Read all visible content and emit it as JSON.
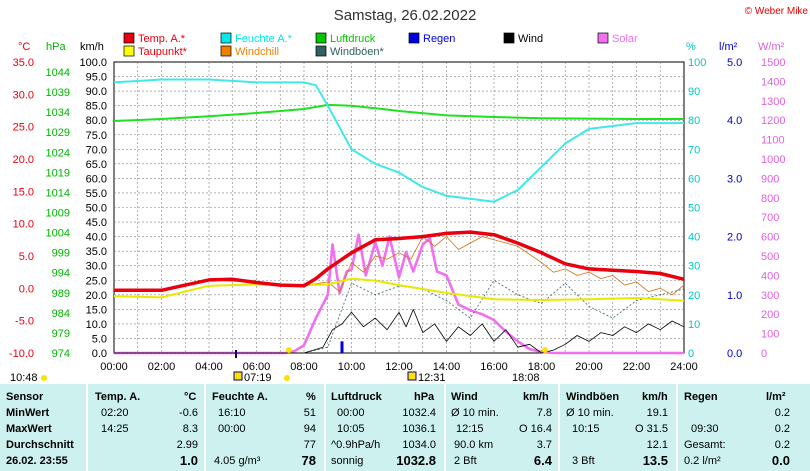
{
  "chart_data": {
    "type": "line",
    "title": "Samstag, 26.02.2022",
    "copyright": "© Weber Mike",
    "x_ticks": [
      "00:00",
      "02:00",
      "04:00",
      "06:00",
      "08:00",
      "10:00",
      "12:00",
      "14:00",
      "16:00",
      "18:00",
      "20:00",
      "22:00",
      "24:00"
    ],
    "axes": {
      "temp": {
        "unit": "°C",
        "min": -10,
        "max": 35,
        "ticks": [
          "35.0",
          "30.0",
          "25.0",
          "20.0",
          "15.0",
          "10.0",
          "5.0",
          "0.0",
          "-5.0",
          "-10.0"
        ],
        "color": "#e8000f"
      },
      "pressure": {
        "unit": "hPa",
        "min": 974,
        "max": 1046.5,
        "ticks": [
          "1044",
          "1039",
          "1034",
          "1029",
          "1024",
          "1019",
          "1014",
          "1009",
          "1004",
          "999",
          "994",
          "989",
          "984",
          "979",
          "974"
        ],
        "color": "#00b400"
      },
      "wind": {
        "unit": "km/h",
        "min": 0,
        "max": 100,
        "ticks": [
          "100.0",
          "95.0",
          "90.0",
          "85.0",
          "80.0",
          "75.0",
          "70.0",
          "65.0",
          "60.0",
          "55.0",
          "50.0",
          "45.0",
          "40.0",
          "35.0",
          "30.0",
          "25.0",
          "20.0",
          "15.0",
          "10.0",
          "5.0",
          "0.0"
        ],
        "color": "#000000"
      },
      "humidity": {
        "unit": "%",
        "min": 0,
        "max": 100,
        "ticks": [
          "100",
          "90",
          "80",
          "70",
          "60",
          "50",
          "40",
          "30",
          "20",
          "10",
          "0"
        ],
        "color": "#00c8c8"
      },
      "rain": {
        "unit": "l/m²",
        "min": 0,
        "max": 5,
        "ticks": [
          "5.0",
          "4.0",
          "3.0",
          "2.0",
          "1.0",
          "0.0"
        ],
        "color": "#0000c8"
      },
      "solar": {
        "unit": "W/m²",
        "min": 0,
        "max": 1500,
        "ticks": [
          "1500",
          "1400",
          "1300",
          "1200",
          "1100",
          "1000",
          "900",
          "800",
          "700",
          "600",
          "500",
          "400",
          "300",
          "200",
          "100",
          "0"
        ],
        "color": "#e060e0"
      }
    },
    "legend": [
      {
        "name": "Temp. A.*",
        "color": "#e8000f"
      },
      {
        "name": "Feuchte A.*",
        "color": "#00e8e8"
      },
      {
        "name": "Luftdruck",
        "color": "#00c800"
      },
      {
        "name": "Regen",
        "color": "#0000e0"
      },
      {
        "name": "Wind",
        "color": "#000000"
      },
      {
        "name": "Solar",
        "color": "#f070f0"
      },
      {
        "name": "Taupunkt*",
        "color": "#ffff00"
      },
      {
        "name": "Windchill",
        "color": "#f08000"
      },
      {
        "name": "Windböen*",
        "color": "#306060"
      }
    ],
    "series": [
      {
        "name": "Temp. A.*",
        "axis": "temp",
        "x": [
          0,
          2,
          3,
          4,
          5,
          6,
          7,
          8,
          8.5,
          9,
          10,
          11,
          12,
          13,
          14,
          15,
          16,
          17,
          18,
          19,
          20,
          21,
          22,
          23,
          24
        ],
        "values": [
          -0.3,
          -0.3,
          0.5,
          1.3,
          1.4,
          0.9,
          0.5,
          0.4,
          1.5,
          3,
          5.5,
          7.5,
          7.7,
          8.0,
          8.5,
          8.7,
          8.3,
          7.0,
          5.5,
          3.8,
          3.0,
          2.8,
          2.6,
          2.3,
          1.4
        ]
      },
      {
        "name": "Feuchte A.*",
        "axis": "humidity",
        "x": [
          0,
          2,
          4,
          6,
          7,
          8,
          8.5,
          9,
          10,
          11,
          12,
          13,
          14,
          15,
          16,
          17,
          18,
          19,
          20,
          21,
          22,
          23,
          24
        ],
        "values": [
          93,
          94,
          94,
          93,
          93,
          93,
          92,
          85,
          70,
          65,
          62,
          57,
          54,
          53,
          52,
          56,
          64,
          72,
          77,
          78,
          79,
          79,
          79
        ]
      },
      {
        "name": "Luftdruck",
        "axis": "pressure",
        "x": [
          0,
          2,
          4,
          6,
          8,
          9,
          10,
          11,
          12,
          14,
          16,
          18,
          20,
          22,
          24
        ],
        "values": [
          1031.8,
          1032.3,
          1033.0,
          1033.8,
          1034.8,
          1035.8,
          1035.6,
          1035.0,
          1034.3,
          1033.2,
          1032.8,
          1032.5,
          1032.4,
          1032.3,
          1032.3
        ]
      },
      {
        "name": "Taupunkt*",
        "axis": "temp",
        "x": [
          0,
          2,
          4,
          6,
          8,
          9,
          10,
          11,
          12,
          14,
          16,
          18,
          20,
          22,
          24
        ],
        "values": [
          -1.2,
          -1.4,
          0.4,
          0.6,
          0.5,
          0.6,
          1.5,
          1.2,
          0.5,
          -0.7,
          -1.7,
          -1.8,
          -1.7,
          -1.5,
          -1.9
        ]
      },
      {
        "name": "Windchill",
        "axis": "temp",
        "x": [
          0,
          2,
          4,
          6,
          8,
          9,
          9.5,
          10,
          10.5,
          11,
          11.5,
          12,
          12.5,
          13,
          13.5,
          14,
          14.5,
          15,
          15.5,
          16,
          17,
          18,
          18.5,
          19,
          19.5,
          20,
          20.5,
          21,
          21.5,
          22,
          22.5,
          23,
          23.5,
          24
        ],
        "values": [
          -0.3,
          -0.3,
          1.3,
          0.9,
          0.4,
          1.0,
          -0.5,
          4.0,
          2.5,
          5.0,
          4.5,
          5.5,
          4.5,
          8.0,
          6.5,
          8.0,
          6.0,
          7.0,
          8.0,
          7.5,
          6.5,
          4.0,
          2.5,
          3.0,
          2.0,
          2.5,
          1.5,
          2.0,
          0.5,
          1.0,
          -0.5,
          0.0,
          -1.0,
          0.5
        ]
      },
      {
        "name": "Windböen*",
        "axis": "wind",
        "x": [
          0,
          4,
          8,
          9,
          10,
          11,
          12,
          13,
          14,
          15,
          16,
          17,
          18,
          19,
          20,
          21,
          22,
          23,
          24
        ],
        "values": [
          0,
          0,
          0,
          2,
          24,
          20,
          23,
          22,
          18,
          12,
          25,
          20,
          17,
          24,
          16,
          12,
          18,
          20,
          22
        ]
      },
      {
        "name": "Wind",
        "axis": "wind",
        "x": [
          0,
          8,
          8.8,
          9.2,
          9.6,
          10,
          10.5,
          11,
          11.5,
          12,
          12.3,
          12.6,
          13,
          13.5,
          14,
          14.5,
          15,
          15.5,
          16,
          16.5,
          17,
          17.5,
          18,
          18.5,
          19,
          19.5,
          20,
          20.5,
          21,
          21.5,
          22,
          22.5,
          23,
          23.5,
          24
        ],
        "values": [
          0,
          0,
          2,
          8,
          10,
          14,
          9,
          12,
          8,
          14,
          9,
          15,
          7,
          10,
          4,
          9,
          6,
          10,
          4,
          8,
          2,
          3,
          0,
          1,
          3,
          6,
          4,
          7,
          6,
          9,
          7,
          10,
          8,
          11,
          9
        ]
      },
      {
        "name": "Solar",
        "axis": "solar",
        "x": [
          0,
          7.2,
          7.6,
          8,
          8.5,
          9,
          9.2,
          9.5,
          9.8,
          10,
          10.3,
          10.6,
          11,
          11.3,
          11.6,
          12,
          12.3,
          12.6,
          13,
          13.3,
          13.6,
          14,
          14.5,
          15,
          15.5,
          16,
          16.5,
          17,
          17.5,
          18,
          18.5,
          24
        ],
        "values": [
          0,
          0,
          10,
          40,
          180,
          300,
          560,
          310,
          420,
          430,
          610,
          400,
          570,
          450,
          600,
          390,
          520,
          420,
          560,
          590,
          420,
          400,
          250,
          220,
          200,
          170,
          110,
          60,
          20,
          5,
          0,
          0
        ]
      },
      {
        "name": "Regen",
        "axis": "rain",
        "type": "bar",
        "x": [
          9.6
        ],
        "values": [
          0.2
        ]
      }
    ],
    "markers": {
      "sunrise": "07:19",
      "sunset": "18:08",
      "noon": "12:31",
      "moon": "10:48"
    }
  },
  "table": {
    "row_labels": [
      "Sensor",
      "MinWert",
      "MaxWert",
      "Durchschnitt",
      "26.02. 23:55"
    ],
    "temp": {
      "header": "Temp. A.",
      "unit": "°C",
      "min_time": "02:20",
      "min": "-0.6",
      "max_time": "14:25",
      "max": "8.3",
      "avg": "2.99",
      "cur": "1.0"
    },
    "hum": {
      "header": "Feuchte A.",
      "unit": "%",
      "min_time": "16:10",
      "min": "51",
      "max_time": "00:00",
      "max": "94",
      "avg": "77",
      "abs": "4.05 g/m³",
      "cur": "78"
    },
    "press": {
      "header": "Luftdruck",
      "unit": "hPa",
      "min_time": "00:00",
      "min": "1032.4",
      "max_time": "10:05",
      "max": "1036.1",
      "trend": "^0.9hPa/h",
      "avg": "1034.0",
      "state": "sonnig",
      "cur": "1032.8"
    },
    "wind": {
      "header": "Wind",
      "unit": "km/h",
      "min_label": "Ø 10 min.",
      "min": "7.8",
      "max_time": "12:15",
      "max_dir": "O 16.4",
      "dist": "90.0 km",
      "avg": "3.7",
      "bft": "2 Bft",
      "cur": "6.4"
    },
    "gust": {
      "header": "Windböen",
      "unit": "km/h",
      "min_label": "Ø 10 min.",
      "min": "19.1",
      "max_time": "10:15",
      "max_dir": "O 31.5",
      "avg": "12.1",
      "bft": "3 Bft",
      "cur": "13.5"
    },
    "rain": {
      "header": "Regen",
      "unit": "l/m²",
      "min": "0.2",
      "max_time": "09:30",
      "max": "0.2",
      "total_label": "Gesamt:",
      "total": "0.2",
      "cur_rate": "0.2 l/m²",
      "cur": "0.0"
    }
  }
}
